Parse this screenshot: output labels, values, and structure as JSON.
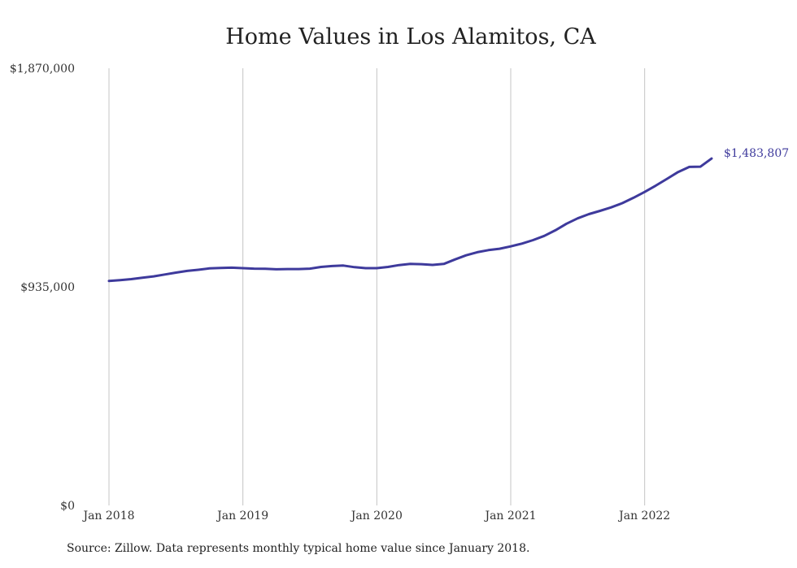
{
  "chart_data": {
    "type": "line",
    "title": "Home Values in Los Alamitos, CA",
    "ylim": [
      0,
      1870000
    ],
    "y_ticks": [
      "$0",
      "$935,000",
      "$1,870,000"
    ],
    "y_tick_values": [
      0,
      935000,
      1870000
    ],
    "x_ticks": [
      "Jan 2018",
      "Jan 2019",
      "Jan 2020",
      "Jan 2021",
      "Jan 2022"
    ],
    "grid": "vertical lines at each January",
    "series": [
      {
        "color": "#3e3a9c",
        "x": [
          "2018-01",
          "2018-02",
          "2018-03",
          "2018-04",
          "2018-05",
          "2018-06",
          "2018-07",
          "2018-08",
          "2018-09",
          "2018-10",
          "2018-11",
          "2018-12",
          "2019-01",
          "2019-02",
          "2019-03",
          "2019-04",
          "2019-05",
          "2019-06",
          "2019-07",
          "2019-08",
          "2019-09",
          "2019-10",
          "2019-11",
          "2019-12",
          "2020-01",
          "2020-02",
          "2020-03",
          "2020-04",
          "2020-05",
          "2020-06",
          "2020-07",
          "2020-08",
          "2020-09",
          "2020-10",
          "2020-11",
          "2020-12",
          "2021-01",
          "2021-02",
          "2021-03",
          "2021-04",
          "2021-05",
          "2021-06",
          "2021-07",
          "2021-08",
          "2021-09",
          "2021-10",
          "2021-11",
          "2021-12",
          "2022-01",
          "2022-02",
          "2022-03",
          "2022-04",
          "2022-05",
          "2022-06",
          "2022-07"
        ],
        "values": [
          960000,
          964000,
          968000,
          974000,
          980000,
          988000,
          996000,
          1003000,
          1008000,
          1014000,
          1016000,
          1017000,
          1015000,
          1013000,
          1012000,
          1010000,
          1011000,
          1011000,
          1013000,
          1020000,
          1024000,
          1026000,
          1019000,
          1015000,
          1015000,
          1020000,
          1028000,
          1033000,
          1032000,
          1029000,
          1033000,
          1052000,
          1070000,
          1083000,
          1092000,
          1098000,
          1108000,
          1120000,
          1135000,
          1153000,
          1177000,
          1205000,
          1228000,
          1246000,
          1260000,
          1275000,
          1293000,
          1316000,
          1341000,
          1368000,
          1397000,
          1426000,
          1448000,
          1449000,
          1483807
        ]
      }
    ],
    "end_label": "$1,483,807"
  },
  "source_note": "Source: Zillow. Data represents monthly typical home value since January 2018."
}
